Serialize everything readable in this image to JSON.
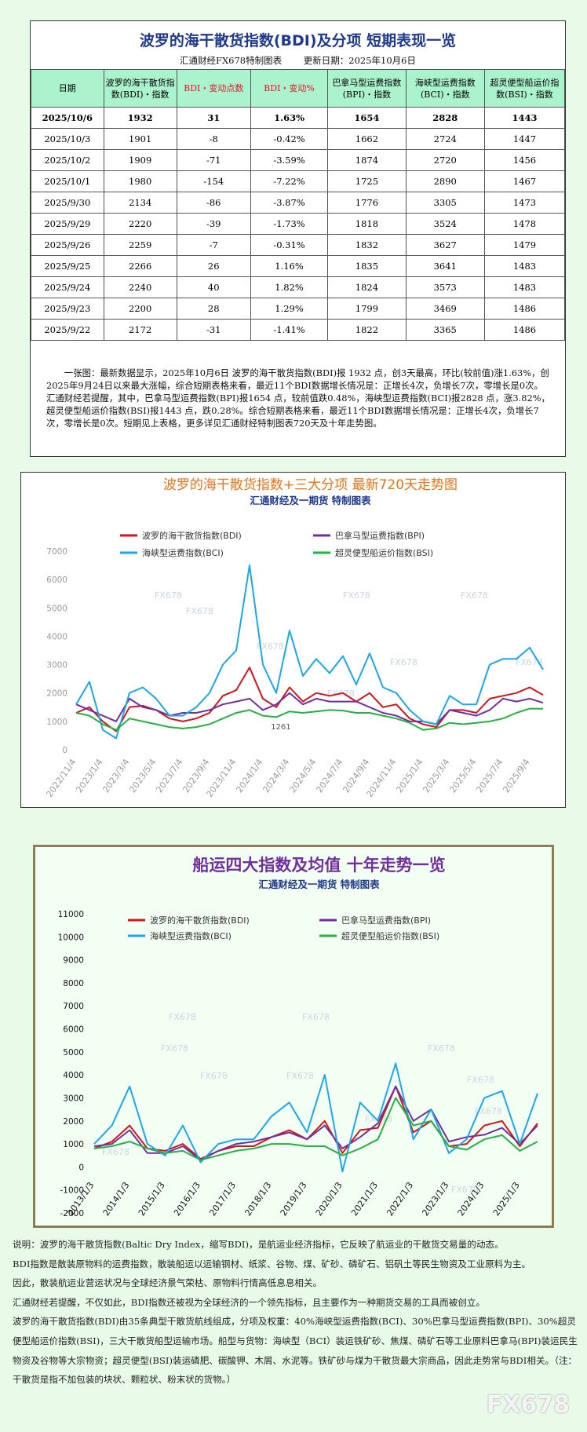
{
  "header": {
    "title": "波罗的海干散货指数(BDI)及分项 短期表现一览",
    "subtitle": "汇通财经FX678特制图表",
    "update": "更新日期：2025年10月6日"
  },
  "table": {
    "columns": [
      "日期",
      "波罗的海干散货指数(BDI)・指数",
      "BDI・变动点数",
      "BDI・变动%",
      "巴拿马型运费指数(BPI)・指数",
      "海峡型运费指数(BCI)・指数",
      "超灵便型船运价指数(BSI)・指数"
    ],
    "rows": [
      [
        "2025/10/6",
        "1932",
        "31",
        "1.63%",
        "1654",
        "2828",
        "1443"
      ],
      [
        "2025/10/3",
        "1901",
        "-8",
        "-0.42%",
        "1662",
        "2724",
        "1447"
      ],
      [
        "2025/10/2",
        "1909",
        "-71",
        "-3.59%",
        "1874",
        "2720",
        "1456"
      ],
      [
        "2025/10/1",
        "1980",
        "-154",
        "-7.22%",
        "1725",
        "2890",
        "1467"
      ],
      [
        "2025/9/30",
        "2134",
        "-86",
        "-3.87%",
        "1776",
        "3305",
        "1473"
      ],
      [
        "2025/9/29",
        "2220",
        "-39",
        "-1.73%",
        "1818",
        "3524",
        "1478"
      ],
      [
        "2025/9/26",
        "2259",
        "-7",
        "-0.31%",
        "1832",
        "3627",
        "1479"
      ],
      [
        "2025/9/25",
        "2266",
        "26",
        "1.16%",
        "1835",
        "3641",
        "1483"
      ],
      [
        "2025/9/24",
        "2240",
        "40",
        "1.82%",
        "1824",
        "3573",
        "1483"
      ],
      [
        "2025/9/23",
        "2200",
        "28",
        "1.29%",
        "1799",
        "3469",
        "1486"
      ],
      [
        "2025/9/22",
        "2172",
        "-31",
        "-1.41%",
        "1822",
        "3365",
        "1486"
      ]
    ]
  },
  "summary": "一张图：最新数据显示，2025年10月6日 波罗的海干散货指数(BDI)报 1932 点，创3天最高，环比(较前值)涨1.63%，创2025年9月24日以来最大涨幅，综合短期表格来看，最近11个BDI数据增长情况是：正增长4次，负增长7次，零增长是0次。汇通财经若提醒，其中，巴拿马型运费指数(BPI)报1654 点，较前值跌0.48%，海峡型运费指数(BCI)报2828 点，涨3.82%，超灵便型船运价指数(BSI)报1443 点，跌0.28%。综合短期表格来看，最近11个BDI数据增长情况是：正增长4次，负增长7次，零增长是0次。短期见上表格，更多详见汇通财经特制图表720天及十年走势图。",
  "watermark": "FX678",
  "chart_data": [
    {
      "type": "line",
      "title": "波罗的海干散货指数+三大分项  最新720天走势图",
      "subtitle": "汇通财经及一期货  特制图表",
      "categories": [
        "2022/11/4",
        null,
        "2023/1/4",
        null,
        "2023/3/4",
        null,
        "2023/5/4",
        null,
        "2023/7/4",
        null,
        "2023/9/4",
        null,
        "2023/11/4",
        null,
        "2024/1/4",
        null,
        "2024/3/4",
        null,
        "2024/5/4",
        null,
        "2024/7/4",
        null,
        "2024/9/4",
        null,
        "2024/11/4",
        null,
        "2025/1/4",
        null,
        "2025/3/4",
        null,
        "2025/5/4",
        null,
        "2025/7/4",
        null,
        "2025/9/4",
        null
      ],
      "series": [
        {
          "name": "波罗的海干散货指数(BDI)",
          "color": "#d0161b",
          "values": [
            1300,
            1500,
            1000,
            650,
            1500,
            1550,
            1400,
            1100,
            1000,
            1100,
            1300,
            1900,
            2100,
            2900,
            1800,
            1500,
            2200,
            1700,
            2000,
            1900,
            2000,
            1700,
            2000,
            1500,
            1600,
            1100,
            900,
            800,
            1400,
            1400,
            1300,
            1800,
            1900,
            2000,
            2200,
            1932
          ]
        },
        {
          "name": "巴拿马型运费指数(BPI)",
          "color": "#7030a0",
          "values": [
            1600,
            1400,
            1200,
            1000,
            1800,
            1500,
            1400,
            1200,
            1300,
            1300,
            1400,
            1600,
            1700,
            1800,
            1400,
            1600,
            2000,
            1600,
            1800,
            1700,
            1700,
            1700,
            1500,
            1300,
            1200,
            1000,
            1000,
            900,
            1400,
            1300,
            1200,
            1400,
            1800,
            1700,
            1800,
            1654
          ]
        },
        {
          "name": "海峡型运费指数(BCI)",
          "color": "#1ea6e8",
          "values": [
            1600,
            2400,
            700,
            400,
            2000,
            2200,
            1800,
            1200,
            1200,
            1500,
            2000,
            3000,
            3500,
            6500,
            3000,
            2000,
            4200,
            2600,
            3200,
            2700,
            3300,
            2300,
            3400,
            2200,
            2000,
            1400,
            1000,
            900,
            1900,
            1600,
            1600,
            3000,
            3200,
            3200,
            3600,
            2828
          ]
        },
        {
          "name": "超灵便型船运价指数(BSI)",
          "color": "#27b043",
          "values": [
            1300,
            1200,
            900,
            700,
            1100,
            1000,
            900,
            800,
            750,
            800,
            900,
            1100,
            1300,
            1400,
            1200,
            1150,
            1350,
            1300,
            1350,
            1400,
            1380,
            1300,
            1300,
            1200,
            1100,
            950,
            700,
            750,
            950,
            900,
            950,
            1000,
            1100,
            1300,
            1450,
            1443
          ]
        }
      ],
      "ylim": [
        0,
        7000
      ],
      "yticks": [
        0,
        1000,
        2000,
        3000,
        4000,
        5000,
        6000,
        7000
      ],
      "annotation": "1261",
      "grid": false
    },
    {
      "type": "line",
      "title": "船运四大指数及均值 十年走势一览",
      "subtitle": "汇通财经及一期货 特制图表",
      "categories": [
        "2013/1/3",
        null,
        "2014/1/3",
        null,
        "2015/1/3",
        null,
        "2016/1/3",
        null,
        "2017/1/3",
        null,
        "2018/1/3",
        null,
        "2019/1/3",
        null,
        "2020/1/3",
        null,
        "2021/1/3",
        null,
        "2022/1/3",
        null,
        "2023/1/3",
        null,
        "2024/1/3",
        null,
        "2025/1/3",
        null
      ],
      "series": [
        {
          "name": "波罗的海干散货指数(BDI)",
          "color": "#d0161b",
          "values": [
            800,
            1100,
            1800,
            800,
            700,
            1000,
            350,
            700,
            900,
            900,
            1300,
            1600,
            1200,
            2000,
            600,
            1600,
            1700,
            3500,
            1500,
            2000,
            900,
            1000,
            1800,
            2000,
            900,
            1900
          ]
        },
        {
          "name": "巴拿马型运费指数(BPI)",
          "color": "#7030a0",
          "values": [
            900,
            1000,
            1600,
            600,
            600,
            900,
            300,
            700,
            1000,
            1100,
            1300,
            1500,
            1200,
            1800,
            800,
            1300,
            1900,
            3500,
            2000,
            2500,
            1100,
            1300,
            1400,
            1700,
            1000,
            1800
          ]
        },
        {
          "name": "海峡型运费指数(BCI)",
          "color": "#1ea6e8",
          "values": [
            1000,
            1800,
            3500,
            1000,
            500,
            1800,
            200,
            1000,
            1200,
            1200,
            2200,
            2800,
            1500,
            4000,
            -200,
            2800,
            2000,
            4500,
            1200,
            2500,
            600,
            1200,
            3000,
            3300,
            1000,
            3200
          ]
        },
        {
          "name": "超灵便型船运价指数(BSI)",
          "color": "#27b043",
          "values": [
            800,
            900,
            1100,
            800,
            600,
            700,
            300,
            500,
            700,
            800,
            1000,
            1000,
            900,
            900,
            500,
            800,
            1200,
            3000,
            1800,
            2000,
            900,
            750,
            1200,
            1380,
            700,
            1100
          ]
        }
      ],
      "ylim": [
        -2000,
        11000
      ],
      "yticks": [
        -2000,
        -1000,
        0,
        1000,
        2000,
        3000,
        4000,
        5000,
        6000,
        7000,
        8000,
        9000,
        10000,
        11000
      ],
      "grid": false
    }
  ],
  "footer": [
    "说明：波罗的海干散货指数(Baltic Dry Index，缩写BDI)，是航运业经济指标，它反映了航运业的干散货交易量的动态。",
    "BDI指数是散装原物料的运费指数，散装船运以运输钢材、纸浆、谷物、煤、矿砂、磷矿石、铝矾土等民生物资及工业原料为主。",
    "因此，散装航运业营运状况与全球经济景气荣枯、原物料行情高低息息相关。",
    "汇通财经若提醒，不仅如此，BDI指数还被视为全球经济的一个领先指标，且主要作为一种期货交易的工具而被创立。",
    "波罗的海干散货指数(BDI)由35条典型干散货航线组成，分项及权重：40%海峡型运费指数(BCI)、30%巴拿马型运费指数(BPI)、30%超灵便型船运价指数(BSI)，三大干散货船型运输市场。船型与货物：海峡型（BCI）装运铁矿砂、焦煤、磷矿石等工业原料巴拿马(BPI)装运民生物资及谷物等大宗物资；超灵便型(BSI)装运磷肥、碳酸钾、木屑、水泥等。铁矿砂与煤为干散货最大宗商品，因此走势常与BDI相关。（注：干散货是指不加包装的块状、颗粒状、粉末状的货物。）"
  ]
}
